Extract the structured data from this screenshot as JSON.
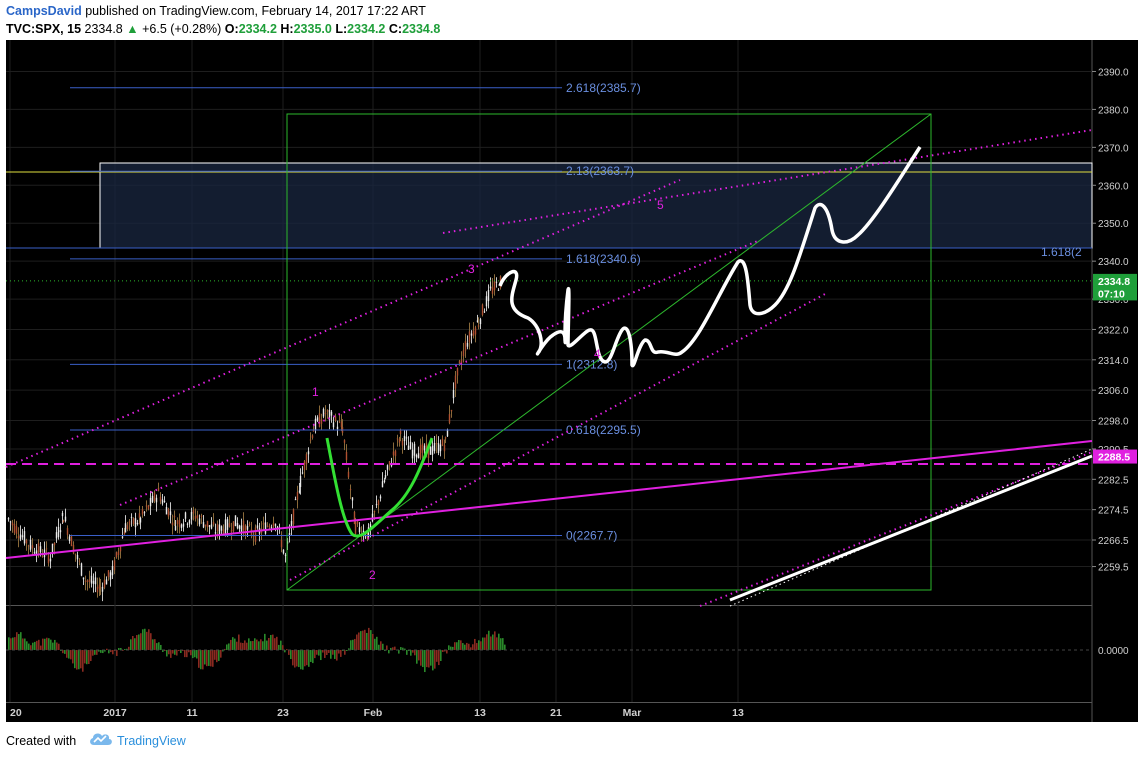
{
  "header": {
    "author": "CampsDavid",
    "published_text": "published on TradingView.com, February 14, 2017 17:22 ART",
    "symbol": "TVC:SPX, 15",
    "last": "2334.8",
    "change": "+6.5 (+0.28%)",
    "open_label": "O:",
    "open": "2334.2",
    "high_label": "H:",
    "high": "2335.0",
    "low_label": "L:",
    "low": "2334.2",
    "close_label": "C:",
    "close": "2334.8"
  },
  "footer": {
    "created_with": "Created with",
    "brand": "TradingView"
  },
  "colors": {
    "background": "#000000",
    "grid": "#1e1e1e",
    "fib_line": "#3a5fc8",
    "fib_text": "#6a8fe0",
    "box_green": "#2db82d",
    "magenta": "#e020e0",
    "white_drawing": "#ffffff",
    "price_badge": "#1f9f3a",
    "yellow_line": "#e0e040"
  },
  "chart_data": {
    "type": "line",
    "symbol": "TVC:SPX",
    "interval": "15",
    "y_axis": {
      "range": [
        2254.5,
        2396.5
      ],
      "ticks": [
        2259.5,
        2266.5,
        2274.5,
        2282.5,
        2290.5,
        2298.0,
        2306.0,
        2314.0,
        2322.0,
        2330.0,
        2340.0,
        2350.0,
        2360.0,
        2370.0,
        2380.0,
        2390.0
      ],
      "tick_labels": [
        "2259.5",
        "2266.5",
        "2274.5",
        "2282.5",
        "2290.5",
        "2298.0",
        "2306.0",
        "2314.0",
        "2322.0",
        "2330.0",
        "2340.0",
        "2350.0",
        "2360.0",
        "2370.0",
        "2380.0",
        "2390.0"
      ]
    },
    "x_axis": {
      "tick_labels": [
        {
          "label": "20",
          "date": "2016-12-20"
        },
        {
          "label": "2017",
          "date": "2017-01-01"
        },
        {
          "label": "11",
          "date": "2017-01-11"
        },
        {
          "label": "23",
          "date": "2017-01-23"
        },
        {
          "label": "Feb",
          "date": "2017-02-01"
        },
        {
          "label": "13",
          "date": "2017-02-13"
        },
        {
          "label": "21",
          "date": "2017-02-21"
        },
        {
          "label": "Mar",
          "date": "2017-03-01"
        },
        {
          "label": "13",
          "date": "2017-03-13"
        }
      ]
    },
    "price_badges": [
      {
        "label": "2334.8",
        "value": 2334.8,
        "color": "#1f9f3a"
      },
      {
        "label": "07:10",
        "value": 2331.5,
        "color": "#1f9f3a"
      },
      {
        "label": "2288.5",
        "value": 2288.5,
        "color": "#e020e0"
      }
    ],
    "fib_levels": [
      {
        "ratio": "0",
        "value": 2267.7,
        "label": "0(2267.7)"
      },
      {
        "ratio": "0.618",
        "value": 2295.5,
        "label": "0.618(2295.5)"
      },
      {
        "ratio": "1",
        "value": 2312.8,
        "label": "1(2312.8)"
      },
      {
        "ratio": "1.618",
        "value": 2340.6,
        "label": "1.618(2340.6)"
      },
      {
        "ratio": "2.13",
        "value": 2363.7,
        "label": "2.13(2363.7)"
      },
      {
        "ratio": "2.618",
        "value": 2385.7,
        "label": "2.618(2385.7)"
      }
    ],
    "right_fib_label": "1.618(2",
    "wave_labels": [
      "1",
      "2",
      "3",
      "4",
      "5"
    ],
    "oscillator": {
      "zero_label": "0.0000"
    }
  }
}
